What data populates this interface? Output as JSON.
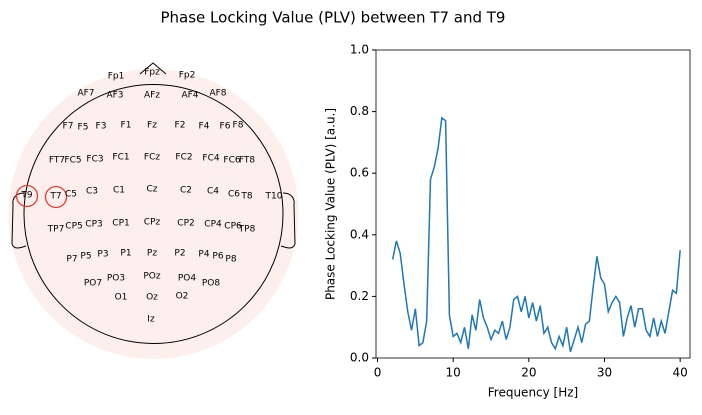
{
  "title": "Phase Locking Value (PLV) between T7 and T9",
  "chart_data": [
    {
      "type": "topomap",
      "highlight_color": "#e8392f",
      "head_color": "#000000",
      "disc_color": "#fdf0ec",
      "sensors": [
        {
          "name": "Fp1"
        },
        {
          "name": "Fpz"
        },
        {
          "name": "Fp2"
        },
        {
          "name": "AF7"
        },
        {
          "name": "AF3"
        },
        {
          "name": "AFz"
        },
        {
          "name": "AF4"
        },
        {
          "name": "AF8"
        },
        {
          "name": "F7"
        },
        {
          "name": "F5"
        },
        {
          "name": "F3"
        },
        {
          "name": "F1"
        },
        {
          "name": "Fz"
        },
        {
          "name": "F2"
        },
        {
          "name": "F4"
        },
        {
          "name": "F6"
        },
        {
          "name": "F8"
        },
        {
          "name": "FT7"
        },
        {
          "name": "FC5"
        },
        {
          "name": "FC3"
        },
        {
          "name": "FC1"
        },
        {
          "name": "FCz"
        },
        {
          "name": "FC2"
        },
        {
          "name": "FC4"
        },
        {
          "name": "FC6"
        },
        {
          "name": "FT8"
        },
        {
          "name": "T9",
          "highlight": true
        },
        {
          "name": "T7",
          "highlight": true
        },
        {
          "name": "C5"
        },
        {
          "name": "C3"
        },
        {
          "name": "C1"
        },
        {
          "name": "Cz"
        },
        {
          "name": "C2"
        },
        {
          "name": "C4"
        },
        {
          "name": "C6"
        },
        {
          "name": "T8"
        },
        {
          "name": "T10"
        },
        {
          "name": "TP7"
        },
        {
          "name": "CP5"
        },
        {
          "name": "CP3"
        },
        {
          "name": "CP1"
        },
        {
          "name": "CPz"
        },
        {
          "name": "CP2"
        },
        {
          "name": "CP4"
        },
        {
          "name": "CP6"
        },
        {
          "name": "TP8"
        },
        {
          "name": "P7"
        },
        {
          "name": "P5"
        },
        {
          "name": "P3"
        },
        {
          "name": "P1"
        },
        {
          "name": "Pz"
        },
        {
          "name": "P2"
        },
        {
          "name": "P4"
        },
        {
          "name": "P6"
        },
        {
          "name": "P8"
        },
        {
          "name": "PO7"
        },
        {
          "name": "PO3"
        },
        {
          "name": "POz"
        },
        {
          "name": "PO4"
        },
        {
          "name": "PO8"
        },
        {
          "name": "O1"
        },
        {
          "name": "Oz"
        },
        {
          "name": "O2"
        },
        {
          "name": "Iz"
        }
      ]
    },
    {
      "type": "line",
      "x_label": "Frequency [Hz]",
      "y_label": "Phase Locking Value (PLV) [a.u.]",
      "xlim": [
        -0.2,
        41.3
      ],
      "ylim": [
        0,
        1
      ],
      "xticks": [
        0,
        10,
        20,
        30,
        40
      ],
      "yticks": [
        {
          "value": 0,
          "label": "0.0"
        },
        {
          "value": 0.2,
          "label": "0.2"
        },
        {
          "value": 0.4,
          "label": "0.4"
        },
        {
          "value": 0.6,
          "label": "0.6"
        },
        {
          "value": 0.8,
          "label": "0.8"
        },
        {
          "value": 1,
          "label": "1.0"
        }
      ],
      "series": [
        {
          "color": "#1f77b4",
          "x": [
            2,
            2.5,
            3,
            3.5,
            4,
            4.5,
            5,
            5.5,
            6,
            6.5,
            7,
            7.5,
            8,
            8.5,
            9,
            9.5,
            10,
            10.5,
            11,
            11.5,
            12,
            12.5,
            13,
            13.5,
            14,
            14.5,
            15,
            15.5,
            16,
            16.5,
            17,
            17.5,
            18,
            18.5,
            19,
            19.5,
            20,
            20.5,
            21,
            21.5,
            22,
            22.5,
            23,
            23.5,
            24,
            24.5,
            25,
            25.5,
            26,
            26.5,
            27,
            27.5,
            28,
            28.5,
            29,
            29.5,
            30,
            30.5,
            31,
            31.5,
            32,
            32.5,
            33,
            33.5,
            34,
            34.5,
            35,
            35.5,
            36,
            36.5,
            37,
            37.5,
            38,
            38.5,
            39,
            39.5,
            40
          ],
          "values": [
            0.32,
            0.38,
            0.34,
            0.24,
            0.15,
            0.09,
            0.16,
            0.04,
            0.05,
            0.12,
            0.58,
            0.62,
            0.68,
            0.78,
            0.77,
            0.14,
            0.07,
            0.08,
            0.05,
            0.1,
            0.03,
            0.14,
            0.09,
            0.19,
            0.13,
            0.1,
            0.06,
            0.09,
            0.08,
            0.12,
            0.06,
            0.1,
            0.19,
            0.2,
            0.15,
            0.2,
            0.13,
            0.18,
            0.12,
            0.17,
            0.08,
            0.1,
            0.05,
            0.03,
            0.07,
            0.04,
            0.1,
            0.02,
            0.06,
            0.1,
            0.05,
            0.11,
            0.12,
            0.23,
            0.33,
            0.26,
            0.24,
            0.15,
            0.18,
            0.2,
            0.18,
            0.07,
            0.13,
            0.17,
            0.1,
            0.16,
            0.16,
            0.09,
            0.07,
            0.13,
            0.07,
            0.12,
            0.08,
            0.15,
            0.22,
            0.21,
            0.35
          ]
        }
      ]
    }
  ]
}
